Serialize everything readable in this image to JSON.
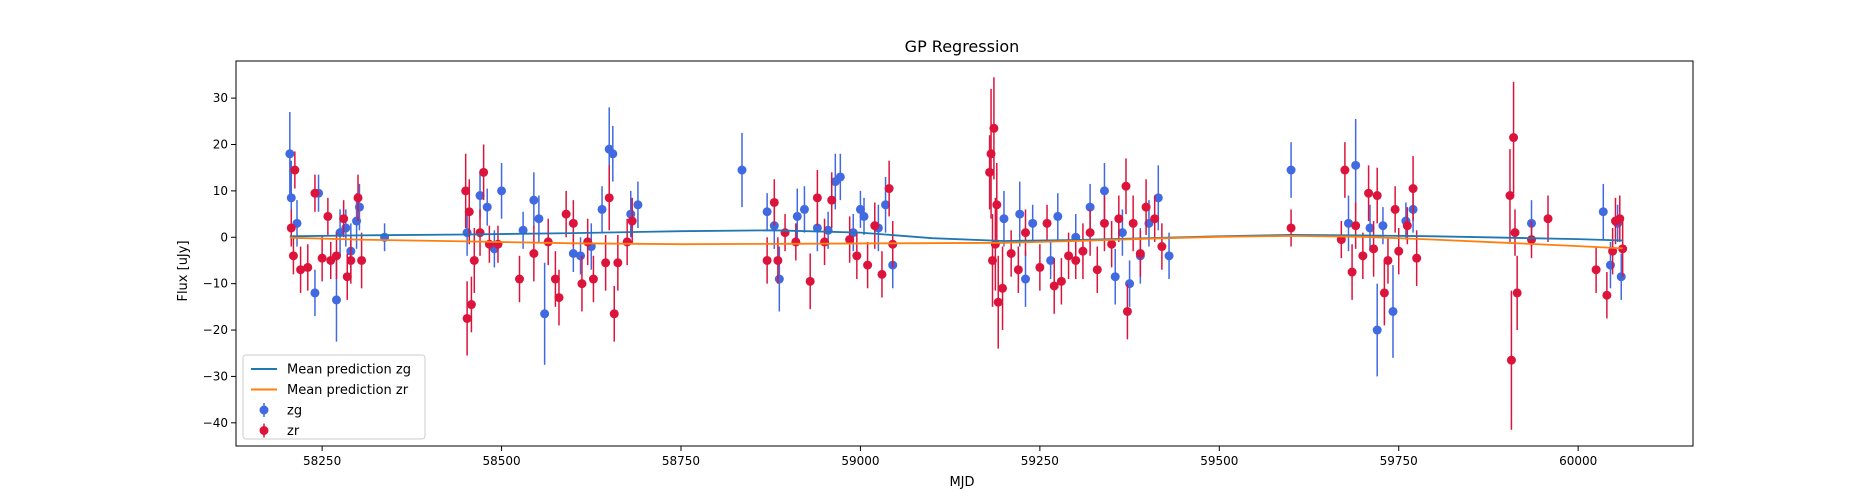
{
  "chart_data": {
    "type": "scatter",
    "title": "GP Regression",
    "xlabel": "MJD",
    "ylabel": "Flux [uJy]",
    "xlim": [
      58130,
      60160
    ],
    "ylim": [
      -45,
      38
    ],
    "xticks": [
      58250,
      58500,
      58750,
      59000,
      59250,
      59500,
      59750,
      60000
    ],
    "yticks": [
      -40,
      -30,
      -20,
      -10,
      0,
      10,
      20,
      30
    ],
    "grid": false,
    "legend_position": "lower-left",
    "colors": {
      "zg_points": "#4169e1",
      "zr_points": "#dc143c",
      "zg_mean": "#1f77b4",
      "zr_mean": "#ff7f0e"
    },
    "legend": [
      {
        "label": "Mean prediction zg",
        "kind": "line",
        "color": "#1f77b4"
      },
      {
        "label": "Mean prediction zr",
        "kind": "line",
        "color": "#ff7f0e"
      },
      {
        "label": "zg",
        "kind": "errorbar",
        "color": "#4169e1"
      },
      {
        "label": "zr",
        "kind": "errorbar",
        "color": "#dc143c"
      }
    ],
    "series": [
      {
        "name": "zg",
        "kind": "errorbar",
        "color": "#4169e1",
        "points": [
          [
            58205,
            18,
            9
          ],
          [
            58207,
            8.5,
            8
          ],
          [
            58215,
            3,
            5
          ],
          [
            58240,
            -12,
            5
          ],
          [
            58245,
            9.5,
            4
          ],
          [
            58270,
            -13.5,
            9
          ],
          [
            58275,
            1,
            5
          ],
          [
            58283,
            2,
            4
          ],
          [
            58290,
            -3,
            6
          ],
          [
            58298,
            3.5,
            6
          ],
          [
            58302,
            6.5,
            5
          ],
          [
            58337,
            0,
            3
          ],
          [
            58452,
            1,
            5
          ],
          [
            58470,
            9,
            5
          ],
          [
            58480,
            6.5,
            4
          ],
          [
            58490,
            -2.5,
            4
          ],
          [
            58500,
            10,
            6
          ],
          [
            58530,
            1.5,
            4
          ],
          [
            58545,
            8,
            6
          ],
          [
            58552,
            4,
            5
          ],
          [
            58560,
            -16.5,
            11
          ],
          [
            58600,
            -3.5,
            4
          ],
          [
            58610,
            -4,
            4
          ],
          [
            58625,
            -2,
            5
          ],
          [
            58640,
            6,
            5
          ],
          [
            58650,
            19,
            9
          ],
          [
            58655,
            18,
            6
          ],
          [
            58680,
            5,
            5
          ],
          [
            58690,
            7,
            5
          ],
          [
            58835,
            14.5,
            8
          ],
          [
            58870,
            5.5,
            4
          ],
          [
            58880,
            2.5,
            5
          ],
          [
            58887,
            -9,
            7
          ],
          [
            58912,
            4.5,
            6
          ],
          [
            58922,
            6,
            5
          ],
          [
            58940,
            2,
            5
          ],
          [
            58955,
            1.5,
            4
          ],
          [
            58965,
            12,
            6
          ],
          [
            58972,
            13,
            5
          ],
          [
            58990,
            1,
            4
          ],
          [
            59000,
            6,
            4
          ],
          [
            59005,
            4.5,
            4
          ],
          [
            59025,
            2,
            5
          ],
          [
            59035,
            7,
            6
          ],
          [
            59045,
            -6,
            5
          ],
          [
            59200,
            4,
            6
          ],
          [
            59222,
            5,
            7
          ],
          [
            59230,
            -9,
            6
          ],
          [
            59240,
            3,
            4
          ],
          [
            59265,
            -5,
            4
          ],
          [
            59275,
            4.5,
            5
          ],
          [
            59300,
            0,
            5
          ],
          [
            59320,
            6.5,
            5
          ],
          [
            59340,
            10,
            6
          ],
          [
            59355,
            -8.5,
            6
          ],
          [
            59365,
            1,
            5
          ],
          [
            59375,
            -10,
            5
          ],
          [
            59390,
            -4,
            6
          ],
          [
            59402,
            3,
            5
          ],
          [
            59415,
            8.5,
            7
          ],
          [
            59430,
            -4,
            5
          ],
          [
            59600,
            14.5,
            6
          ],
          [
            59680,
            3,
            6
          ],
          [
            59690,
            15.5,
            10
          ],
          [
            59710,
            2,
            5
          ],
          [
            59720,
            -20,
            10
          ],
          [
            59728,
            2.5,
            4
          ],
          [
            59742,
            -16,
            10
          ],
          [
            59760,
            3.5,
            4
          ],
          [
            59770,
            6,
            5
          ],
          [
            59935,
            3,
            5
          ],
          [
            60035,
            5.5,
            6
          ],
          [
            60045,
            -6,
            5
          ],
          [
            60055,
            3,
            4
          ],
          [
            60060,
            -8.5,
            5
          ]
        ]
      },
      {
        "name": "zr",
        "kind": "errorbar",
        "color": "#dc143c",
        "points": [
          [
            58207,
            2,
            4
          ],
          [
            58210,
            -4,
            4
          ],
          [
            58212,
            14.5,
            4
          ],
          [
            58220,
            -7,
            5
          ],
          [
            58230,
            -6.5,
            5
          ],
          [
            58240,
            9.5,
            4
          ],
          [
            58250,
            -4.5,
            5
          ],
          [
            58258,
            4.5,
            4
          ],
          [
            58262,
            -5,
            4
          ],
          [
            58270,
            -4,
            5
          ],
          [
            58280,
            4,
            4
          ],
          [
            58285,
            -8.5,
            5
          ],
          [
            58290,
            -5,
            5
          ],
          [
            58300,
            8.5,
            5
          ],
          [
            58305,
            -5,
            6
          ],
          [
            58450,
            10,
            8
          ],
          [
            58452,
            -17.5,
            8
          ],
          [
            58455,
            5.5,
            7
          ],
          [
            58458,
            -14.5,
            6
          ],
          [
            58462,
            -5,
            7
          ],
          [
            58470,
            1,
            5
          ],
          [
            58475,
            14,
            6
          ],
          [
            58483,
            -1.5,
            4
          ],
          [
            58495,
            -1.5,
            4
          ],
          [
            58525,
            -9,
            5
          ],
          [
            58545,
            -3.5,
            6
          ],
          [
            58565,
            -1,
            5
          ],
          [
            58575,
            -9,
            6
          ],
          [
            58580,
            -13,
            6
          ],
          [
            58590,
            5,
            5
          ],
          [
            58600,
            3,
            5
          ],
          [
            58612,
            -10,
            6
          ],
          [
            58620,
            -1,
            5
          ],
          [
            58628,
            -9,
            5
          ],
          [
            58645,
            -5.5,
            6
          ],
          [
            58650,
            8.5,
            7
          ],
          [
            58657,
            -16.5,
            6
          ],
          [
            58662,
            -5.5,
            6
          ],
          [
            58675,
            -1,
            5
          ],
          [
            58682,
            3.5,
            5
          ],
          [
            58870,
            -5,
            5
          ],
          [
            58880,
            7.5,
            5
          ],
          [
            58885,
            -5,
            5
          ],
          [
            58895,
            1,
            4
          ],
          [
            58910,
            -1,
            4
          ],
          [
            58930,
            -9.5,
            6
          ],
          [
            58940,
            8.5,
            6
          ],
          [
            58950,
            -1,
            5
          ],
          [
            58960,
            8,
            6
          ],
          [
            58985,
            -0.5,
            5
          ],
          [
            58995,
            -4,
            5
          ],
          [
            59010,
            -6,
            5
          ],
          [
            59020,
            2.5,
            5
          ],
          [
            59030,
            -8,
            5
          ],
          [
            59040,
            10.5,
            6
          ],
          [
            59045,
            -1.5,
            5
          ],
          [
            59180,
            14,
            8
          ],
          [
            59182,
            18,
            14
          ],
          [
            59184,
            -5,
            10
          ],
          [
            59186,
            23.5,
            11
          ],
          [
            59188,
            -1.5,
            10
          ],
          [
            59190,
            7,
            9
          ],
          [
            59192,
            -14,
            10
          ],
          [
            59198,
            -11,
            9
          ],
          [
            59210,
            -3.5,
            5
          ],
          [
            59220,
            -7,
            5
          ],
          [
            59230,
            1,
            5
          ],
          [
            59250,
            -6.5,
            5
          ],
          [
            59260,
            3,
            4
          ],
          [
            59270,
            -10.5,
            6
          ],
          [
            59280,
            -9.5,
            5
          ],
          [
            59290,
            -4,
            5
          ],
          [
            59300,
            -5,
            4
          ],
          [
            59310,
            -3,
            6
          ],
          [
            59320,
            1,
            5
          ],
          [
            59330,
            -7,
            5
          ],
          [
            59340,
            3,
            6
          ],
          [
            59350,
            -1.5,
            5
          ],
          [
            59360,
            4,
            5
          ],
          [
            59370,
            11,
            6
          ],
          [
            59372,
            -16,
            6
          ],
          [
            59380,
            3,
            6
          ],
          [
            59390,
            -3.5,
            5
          ],
          [
            59398,
            6.5,
            6
          ],
          [
            59410,
            4,
            5
          ],
          [
            59420,
            -2,
            5
          ],
          [
            59600,
            2,
            4
          ],
          [
            59670,
            -0.5,
            4
          ],
          [
            59675,
            14.5,
            6
          ],
          [
            59685,
            -7.5,
            6
          ],
          [
            59690,
            2.5,
            5
          ],
          [
            59700,
            -4,
            5
          ],
          [
            59708,
            9.5,
            6
          ],
          [
            59715,
            -2.5,
            6
          ],
          [
            59720,
            9,
            6
          ],
          [
            59730,
            -12,
            7
          ],
          [
            59735,
            -5,
            5
          ],
          [
            59745,
            6,
            5
          ],
          [
            59750,
            -3,
            5
          ],
          [
            59762,
            2.5,
            4
          ],
          [
            59770,
            10.5,
            7
          ],
          [
            59775,
            -4.5,
            6
          ],
          [
            59905,
            9,
            10
          ],
          [
            59907,
            -26.5,
            15
          ],
          [
            59910,
            21.5,
            12
          ],
          [
            59912,
            1,
            5
          ],
          [
            59915,
            -12,
            8
          ],
          [
            59935,
            -0.5,
            4
          ],
          [
            59958,
            4,
            5
          ],
          [
            60025,
            -7,
            5
          ],
          [
            60040,
            -12.5,
            5
          ],
          [
            60048,
            -3,
            5
          ],
          [
            60052,
            3.5,
            5
          ],
          [
            60058,
            4,
            5
          ],
          [
            60062,
            -2.5,
            6
          ]
        ]
      },
      {
        "name": "Mean prediction zg",
        "kind": "line",
        "color": "#1f77b4",
        "points": [
          [
            58205,
            0.2
          ],
          [
            58300,
            0.4
          ],
          [
            58450,
            0.6
          ],
          [
            58600,
            0.9
          ],
          [
            58750,
            1.3
          ],
          [
            58880,
            1.5
          ],
          [
            59000,
            1.0
          ],
          [
            59100,
            -0.2
          ],
          [
            59200,
            -0.8
          ],
          [
            59300,
            -0.6
          ],
          [
            59400,
            -0.2
          ],
          [
            59500,
            0.2
          ],
          [
            59600,
            0.5
          ],
          [
            59700,
            0.4
          ],
          [
            59800,
            0.2
          ],
          [
            59900,
            -0.1
          ],
          [
            60000,
            -0.4
          ],
          [
            60062,
            -0.7
          ]
        ]
      },
      {
        "name": "Mean prediction zr",
        "kind": "line",
        "color": "#ff7f0e",
        "points": [
          [
            58205,
            -0.1
          ],
          [
            58300,
            -0.5
          ],
          [
            58450,
            -0.9
          ],
          [
            58600,
            -1.3
          ],
          [
            58750,
            -1.5
          ],
          [
            58900,
            -1.4
          ],
          [
            59050,
            -1.3
          ],
          [
            59200,
            -1.2
          ],
          [
            59300,
            -0.8
          ],
          [
            59400,
            -0.3
          ],
          [
            59500,
            0.1
          ],
          [
            59600,
            0.3
          ],
          [
            59700,
            0.1
          ],
          [
            59800,
            -0.5
          ],
          [
            59900,
            -1.2
          ],
          [
            60000,
            -1.9
          ],
          [
            60062,
            -2.4
          ]
        ]
      }
    ]
  }
}
